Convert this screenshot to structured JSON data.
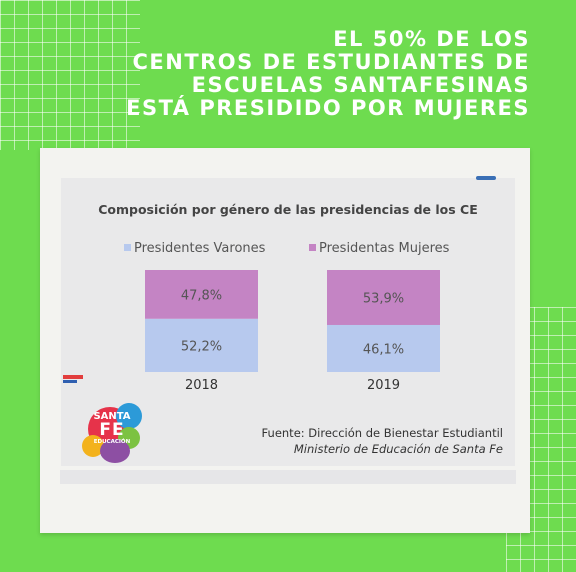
{
  "headline": {
    "lines": [
      "EL 50% DE LOS",
      "CENTROS DE ESTUDIANTES DE",
      "ESCUELAS SANTAFESINAS",
      "ESTÁ PRESIDIDO POR MUJERES"
    ]
  },
  "colors": {
    "background": "#6edc4f",
    "varones": "#b7c9ee",
    "mujeres": "#c484c4"
  },
  "chart_data": {
    "type": "bar",
    "stacked": true,
    "title": "Composición por género de las presidencias de los CE",
    "categories": [
      "2018",
      "2019"
    ],
    "series": [
      {
        "name": "Presidentes Varones",
        "values": [
          52.2,
          46.1
        ],
        "labels": [
          "52,2%",
          "46,1%"
        ],
        "color": "#b7c9ee"
      },
      {
        "name": "Presidentas Mujeres",
        "values": [
          47.8,
          53.9
        ],
        "labels": [
          "47,8%",
          "53,9%"
        ],
        "color": "#c484c4"
      }
    ],
    "ylim": [
      0,
      100
    ],
    "grid": false,
    "legend": "top"
  },
  "source": {
    "line1": "Fuente: Dirección de Bienestar Estudiantil",
    "line2": "Ministerio de Educación de Santa Fe"
  },
  "logo": {
    "line1": "SANTA",
    "line2": "FE",
    "line3": "EDUCACIÓN"
  }
}
